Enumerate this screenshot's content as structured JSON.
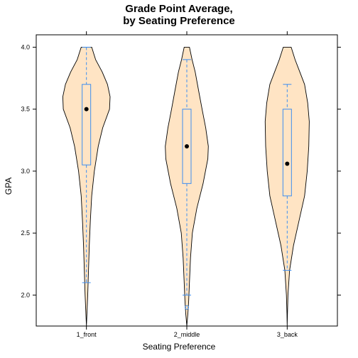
{
  "chart_data": {
    "type": "violin",
    "title": [
      "Grade Point Average,",
      "by Seating Preference"
    ],
    "xlabel": "Seating Preference",
    "ylabel": "GPA",
    "categories": [
      "1_front",
      "2_middle",
      "3_back"
    ],
    "ylim": [
      1.75,
      4.1
    ],
    "yticks": [
      2.0,
      2.5,
      3.0,
      3.5,
      4.0
    ],
    "ytick_labels": [
      "2.0",
      "2.5",
      "3.0",
      "3.5",
      "4.0"
    ],
    "grid": false,
    "colors": {
      "violin_fill": "#FFE4C4",
      "violin_stroke": "#000000",
      "box": "#3D8EF0",
      "median_dot": "#000000",
      "frame": "#000000"
    },
    "boxes": [
      {
        "category": "1_front",
        "whisker_low": 2.1,
        "q1": 3.05,
        "median": 3.5,
        "q3": 3.7,
        "whisker_high": 4.0,
        "outliers": []
      },
      {
        "category": "2_middle",
        "whisker_low": 2.0,
        "q1": 2.9,
        "median": 3.2,
        "q3": 3.5,
        "whisker_high": 3.9,
        "outliers": [
          1.9
        ]
      },
      {
        "category": "3_back",
        "whisker_low": 2.2,
        "q1": 2.8,
        "median": 3.06,
        "q3": 3.5,
        "whisker_high": 3.7,
        "outliers": []
      }
    ],
    "violins": [
      {
        "category": "1_front",
        "profile": [
          [
            1.75,
            0.0
          ],
          [
            1.85,
            0.02
          ],
          [
            2.0,
            0.05
          ],
          [
            2.2,
            0.08
          ],
          [
            2.4,
            0.11
          ],
          [
            2.6,
            0.15
          ],
          [
            2.8,
            0.2
          ],
          [
            3.0,
            0.3
          ],
          [
            3.2,
            0.45
          ],
          [
            3.35,
            0.62
          ],
          [
            3.5,
            0.88
          ],
          [
            3.6,
            0.9
          ],
          [
            3.7,
            0.8
          ],
          [
            3.8,
            0.6
          ],
          [
            3.9,
            0.35
          ],
          [
            4.0,
            0.2
          ]
        ]
      },
      {
        "category": "2_middle",
        "profile": [
          [
            1.75,
            0.0
          ],
          [
            1.85,
            0.04
          ],
          [
            1.95,
            0.07
          ],
          [
            2.1,
            0.1
          ],
          [
            2.3,
            0.14
          ],
          [
            2.5,
            0.21
          ],
          [
            2.7,
            0.38
          ],
          [
            2.9,
            0.62
          ],
          [
            3.1,
            0.8
          ],
          [
            3.2,
            0.82
          ],
          [
            3.35,
            0.72
          ],
          [
            3.5,
            0.58
          ],
          [
            3.65,
            0.45
          ],
          [
            3.8,
            0.32
          ],
          [
            3.9,
            0.2
          ],
          [
            4.0,
            0.1
          ]
        ]
      },
      {
        "category": "3_back",
        "profile": [
          [
            1.75,
            0.0
          ],
          [
            1.85,
            0.01
          ],
          [
            2.0,
            0.03
          ],
          [
            2.2,
            0.09
          ],
          [
            2.4,
            0.24
          ],
          [
            2.6,
            0.45
          ],
          [
            2.8,
            0.66
          ],
          [
            3.0,
            0.76
          ],
          [
            3.2,
            0.82
          ],
          [
            3.4,
            0.84
          ],
          [
            3.55,
            0.78
          ],
          [
            3.7,
            0.66
          ],
          [
            3.8,
            0.48
          ],
          [
            3.9,
            0.3
          ],
          [
            4.0,
            0.15
          ]
        ]
      }
    ]
  }
}
